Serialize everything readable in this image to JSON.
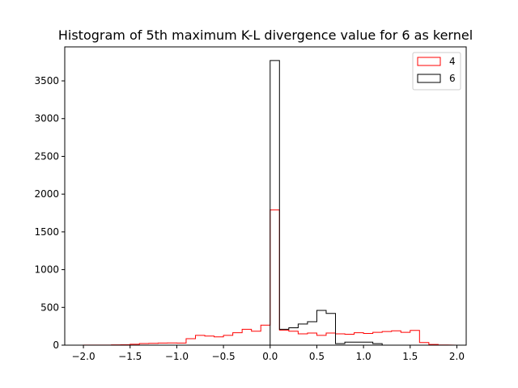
{
  "chart_data": {
    "type": "histogram",
    "title": "Histogram of 5th maximum K-L divergence value for 6 as kernel",
    "xlabel": "",
    "ylabel": "",
    "xlim": [
      -2.2,
      2.1
    ],
    "ylim": [
      0,
      3950
    ],
    "xticks": [
      -2.0,
      -1.5,
      -1.0,
      -0.5,
      0.0,
      0.5,
      1.0,
      1.5,
      2.0
    ],
    "xtick_labels": [
      "−2.0",
      "−1.5",
      "−1.0",
      "−0.5",
      "0.0",
      "0.5",
      "1.0",
      "1.5",
      "2.0"
    ],
    "yticks": [
      0,
      500,
      1000,
      1500,
      2000,
      2500,
      3000,
      3500
    ],
    "ytick_labels": [
      "0",
      "500",
      "1000",
      "1500",
      "2000",
      "2500",
      "3000",
      "3500"
    ],
    "bin_edges": [
      -2.0,
      -1.9,
      -1.8,
      -1.7,
      -1.6,
      -1.5,
      -1.4,
      -1.3,
      -1.2,
      -1.1,
      -1.0,
      -0.9,
      -0.8,
      -0.7,
      -0.6,
      -0.5,
      -0.4,
      -0.3,
      -0.2,
      -0.1,
      0.0,
      0.1,
      0.2,
      0.3,
      0.4,
      0.5,
      0.6,
      0.7,
      0.8,
      0.9,
      1.0,
      1.1,
      1.2,
      1.3,
      1.4,
      1.5,
      1.6,
      1.7,
      1.8,
      1.9
    ],
    "legend": {
      "position": "upper right"
    },
    "series": [
      {
        "name": "4",
        "color": "#ff0000",
        "counts": [
          2,
          2,
          2,
          4,
          5,
          12,
          22,
          24,
          28,
          30,
          28,
          85,
          130,
          120,
          110,
          130,
          165,
          210,
          185,
          265,
          1790,
          200,
          185,
          150,
          160,
          130,
          160,
          150,
          145,
          165,
          155,
          170,
          180,
          190,
          170,
          195,
          35,
          10,
          3
        ]
      },
      {
        "name": "6",
        "color": "#000000",
        "counts": [
          0,
          0,
          0,
          0,
          0,
          0,
          0,
          0,
          0,
          0,
          0,
          0,
          0,
          0,
          0,
          0,
          0,
          0,
          0,
          0,
          3770,
          210,
          230,
          280,
          310,
          460,
          420,
          20,
          40,
          40,
          40,
          20,
          0,
          0,
          0,
          0,
          0,
          0,
          0
        ]
      }
    ]
  }
}
